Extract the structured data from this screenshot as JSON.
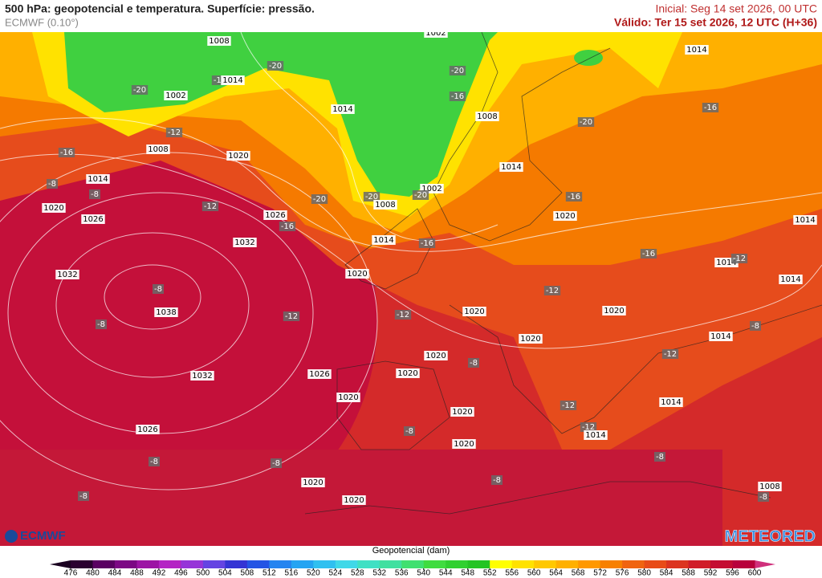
{
  "header": {
    "title": "500 hPa: geopotencial e temperatura. Superfície: pressão.",
    "subtitle": "ECMWF (0.10°)",
    "init": "Inicial: Seg 14 set 2026, 00 UTC",
    "valid": "Válido: Ter 15 set 2026, 12 UTC (H+36)"
  },
  "logos": {
    "left": "ECMWF",
    "right": "METEORED"
  },
  "map": {
    "labels": [
      1008,
      1002,
      -20,
      -20,
      -16,
      1014,
      1002,
      -20,
      1014,
      -16,
      1008,
      -20,
      1014,
      -16,
      -12,
      1008,
      -16,
      1020,
      1014,
      -8,
      1014,
      -8,
      -20,
      -20,
      1002,
      -20,
      -16,
      1020,
      -12,
      1008,
      1026,
      1026,
      -16,
      1020,
      1014,
      1032,
      1014,
      -16,
      -16,
      1014,
      -12,
      1014,
      1032,
      1020,
      -8,
      -12,
      1038,
      1020,
      -12,
      -12,
      1020,
      -8,
      -8,
      1014,
      1020,
      -12,
      1020,
      -8,
      1026,
      1020,
      1032,
      1020,
      1014,
      -12,
      1020,
      -12,
      1014,
      1026,
      -8,
      1020,
      -8,
      -8,
      -8,
      1020,
      -8,
      1008,
      -8,
      -8,
      1020
    ]
  },
  "colorbar": {
    "title": "Geopotencial (dam)",
    "ticks": [
      476,
      480,
      484,
      488,
      492,
      496,
      500,
      504,
      508,
      512,
      516,
      520,
      524,
      528,
      532,
      536,
      540,
      544,
      548,
      552,
      556,
      560,
      564,
      568,
      572,
      576,
      580,
      584,
      588,
      592,
      596,
      600
    ],
    "colors": [
      "#2a0030",
      "#5a0062",
      "#7c0884",
      "#9c14a4",
      "#b424c4",
      "#9634d8",
      "#6444e2",
      "#3434d4",
      "#2454e4",
      "#2484f0",
      "#24a4f2",
      "#30c0f0",
      "#40d8e8",
      "#40e0c4",
      "#40e0a0",
      "#40e070",
      "#40dc40",
      "#30d030",
      "#24c424",
      "#ffff00",
      "#ffe200",
      "#ffc800",
      "#ffb000",
      "#ff9800",
      "#f78000",
      "#f06410",
      "#e84c18",
      "#dc3420",
      "#d01c28",
      "#c40c32",
      "#b8003c"
    ],
    "under_color": "#1a0020",
    "over_color": "#d0307c"
  }
}
